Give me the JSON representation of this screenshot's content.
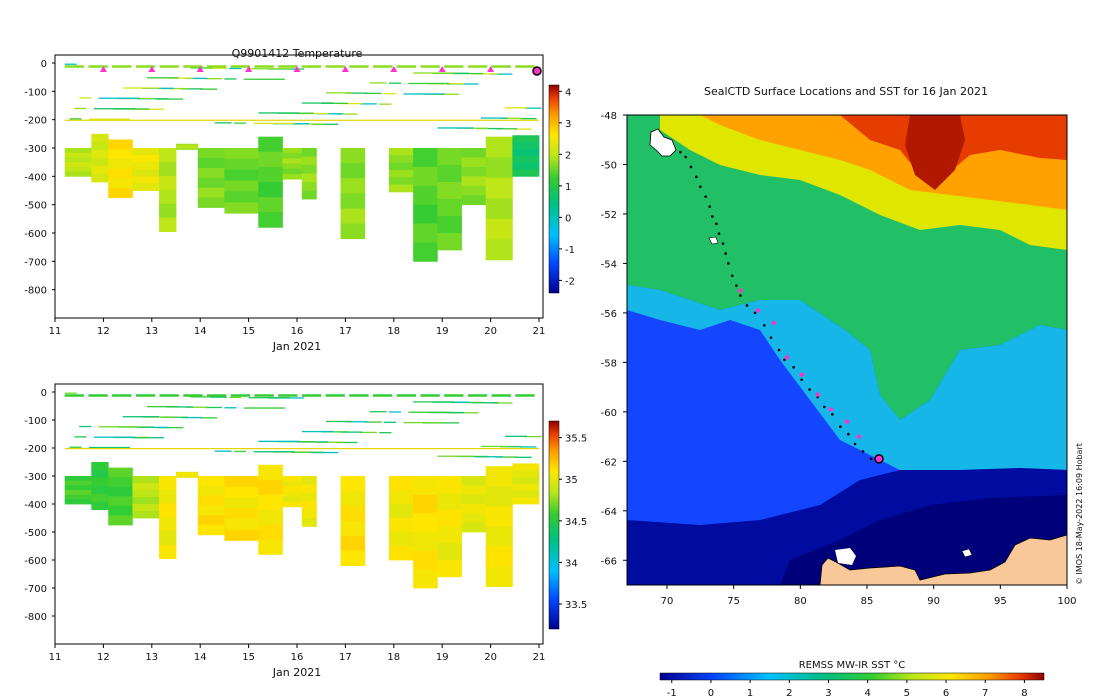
{
  "chart_data": [
    {
      "id": "temperature-profile",
      "type": "heatmap",
      "title": "Q9901412  Temperature",
      "xlabel": "Jan 2021",
      "ylabel": "",
      "xlim": [
        11,
        21
      ],
      "ylim": [
        -900,
        0
      ],
      "xticks": [
        "11",
        "12",
        "13",
        "14",
        "15",
        "16",
        "17",
        "18",
        "19",
        "20",
        "21"
      ],
      "yticks": [
        "0",
        "-100",
        "-200",
        "-300",
        "-400",
        "-500",
        "-600",
        "-700",
        "-800"
      ],
      "colorbar": {
        "min": -2.4,
        "max": 4.2,
        "ticks": [
          "4",
          "3",
          "2",
          "1",
          "0",
          "-1",
          "-2"
        ]
      },
      "profile_markers_x": [
        12,
        13,
        14,
        15,
        16,
        17,
        18,
        19,
        20
      ],
      "latest_marker_x": 21,
      "columns": [
        {
          "x0": 11.2,
          "x1": 11.75,
          "top": -300,
          "bottom": -400,
          "value": 2.0
        },
        {
          "x0": 11.75,
          "x1": 12.1,
          "top": -250,
          "bottom": -420,
          "value": 2.2
        },
        {
          "x0": 12.1,
          "x1": 12.6,
          "top": -270,
          "bottom": -475,
          "value": 2.6
        },
        {
          "x0": 12.6,
          "x1": 13.15,
          "top": -300,
          "bottom": -450,
          "value": 2.4
        },
        {
          "x0": 13.15,
          "x1": 13.5,
          "top": -300,
          "bottom": -595,
          "value": 1.9
        },
        {
          "x0": 13.5,
          "x1": 13.95,
          "top": -285,
          "bottom": -305,
          "value": 1.9
        },
        {
          "x0": 13.95,
          "x1": 14.5,
          "top": -300,
          "bottom": -510,
          "value": 1.6
        },
        {
          "x0": 14.5,
          "x1": 15.2,
          "top": -300,
          "bottom": -530,
          "value": 1.5
        },
        {
          "x0": 15.2,
          "x1": 15.7,
          "top": -260,
          "bottom": -580,
          "value": 1.4
        },
        {
          "x0": 15.7,
          "x1": 16.1,
          "top": -300,
          "bottom": -410,
          "value": 1.7
        },
        {
          "x0": 16.1,
          "x1": 16.4,
          "top": -300,
          "bottom": -480,
          "value": 1.7
        },
        {
          "x0": 16.9,
          "x1": 17.4,
          "top": -300,
          "bottom": -620,
          "value": 1.7
        },
        {
          "x0": 17.9,
          "x1": 18.4,
          "top": -300,
          "bottom": -455,
          "value": 1.7
        },
        {
          "x0": 18.4,
          "x1": 18.9,
          "top": -300,
          "bottom": -700,
          "value": 1.4
        },
        {
          "x0": 18.9,
          "x1": 19.4,
          "top": -300,
          "bottom": -660,
          "value": 1.5
        },
        {
          "x0": 19.4,
          "x1": 19.9,
          "top": -300,
          "bottom": -500,
          "value": 1.7
        },
        {
          "x0": 19.9,
          "x1": 20.45,
          "top": -260,
          "bottom": -695,
          "value": 1.9
        },
        {
          "x0": 20.45,
          "x1": 21.0,
          "top": -255,
          "bottom": -400,
          "value": 0.7
        }
      ]
    },
    {
      "id": "salinity-profile",
      "type": "heatmap",
      "title": "",
      "xlabel": "Jan 2021",
      "ylabel": "",
      "xlim": [
        11,
        21
      ],
      "ylim": [
        -900,
        0
      ],
      "xticks": [
        "11",
        "12",
        "13",
        "14",
        "15",
        "16",
        "17",
        "18",
        "19",
        "20",
        "21"
      ],
      "yticks": [
        "0",
        "-100",
        "-200",
        "-300",
        "-400",
        "-500",
        "-600",
        "-700",
        "-800"
      ],
      "colorbar": {
        "min": 33.2,
        "max": 35.7,
        "ticks": [
          "35.5",
          "35",
          "34.5",
          "34",
          "33.5"
        ]
      },
      "columns": [
        {
          "x0": 11.2,
          "x1": 11.75,
          "top": -300,
          "bottom": -400,
          "value": 34.6
        },
        {
          "x0": 11.75,
          "x1": 12.1,
          "top": -250,
          "bottom": -420,
          "value": 34.55
        },
        {
          "x0": 12.1,
          "x1": 12.6,
          "top": -270,
          "bottom": -475,
          "value": 34.6
        },
        {
          "x0": 12.6,
          "x1": 13.15,
          "top": -300,
          "bottom": -450,
          "value": 34.85
        },
        {
          "x0": 13.15,
          "x1": 13.5,
          "top": -300,
          "bottom": -595,
          "value": 35.05
        },
        {
          "x0": 13.5,
          "x1": 13.95,
          "top": -285,
          "bottom": -305,
          "value": 35.05
        },
        {
          "x0": 13.95,
          "x1": 14.5,
          "top": -300,
          "bottom": -510,
          "value": 35.1
        },
        {
          "x0": 14.5,
          "x1": 15.2,
          "top": -300,
          "bottom": -530,
          "value": 35.1
        },
        {
          "x0": 15.2,
          "x1": 15.7,
          "top": -260,
          "bottom": -580,
          "value": 35.1
        },
        {
          "x0": 15.7,
          "x1": 16.1,
          "top": -300,
          "bottom": -410,
          "value": 35.05
        },
        {
          "x0": 16.1,
          "x1": 16.4,
          "top": -300,
          "bottom": -480,
          "value": 35.05
        },
        {
          "x0": 16.9,
          "x1": 17.4,
          "top": -300,
          "bottom": -620,
          "value": 35.1
        },
        {
          "x0": 17.9,
          "x1": 18.4,
          "top": -300,
          "bottom": -600,
          "value": 35.05
        },
        {
          "x0": 18.4,
          "x1": 18.9,
          "top": -300,
          "bottom": -700,
          "value": 35.1
        },
        {
          "x0": 18.9,
          "x1": 19.4,
          "top": -300,
          "bottom": -660,
          "value": 35.05
        },
        {
          "x0": 19.4,
          "x1": 19.9,
          "top": -300,
          "bottom": -500,
          "value": 35.0
        },
        {
          "x0": 19.9,
          "x1": 20.45,
          "top": -265,
          "bottom": -695,
          "value": 35.05
        },
        {
          "x0": 20.45,
          "x1": 21.0,
          "top": -255,
          "bottom": -400,
          "value": 35.0
        }
      ]
    },
    {
      "id": "sst-map",
      "type": "heatmap",
      "title": "SealCTD Surface Locations and SST for 16 Jan 2021",
      "xlabel": "",
      "ylabel": "",
      "xlim": [
        67,
        100
      ],
      "ylim": [
        -67,
        -48
      ],
      "xticks": [
        "70",
        "75",
        "80",
        "85",
        "90",
        "95",
        "100"
      ],
      "yticks": [
        "-48",
        "-50",
        "-52",
        "-54",
        "-56",
        "-58",
        "-60",
        "-62",
        "-64",
        "-66"
      ],
      "colorbar": {
        "label": "REMSS MW-IR SST °C",
        "min": -1.3,
        "max": 8.5,
        "ticks": [
          "-1",
          "0",
          "1",
          "2",
          "3",
          "4",
          "5",
          "6",
          "7",
          "8"
        ]
      },
      "track": [
        {
          "lon": 71.0,
          "lat": -49.5
        },
        {
          "lon": 71.4,
          "lat": -49.7
        },
        {
          "lon": 71.8,
          "lat": -50.1
        },
        {
          "lon": 72.2,
          "lat": -50.5
        },
        {
          "lon": 72.5,
          "lat": -50.9
        },
        {
          "lon": 72.9,
          "lat": -51.3
        },
        {
          "lon": 73.2,
          "lat": -51.7
        },
        {
          "lon": 73.4,
          "lat": -52.1
        },
        {
          "lon": 73.7,
          "lat": -52.4
        },
        {
          "lon": 73.9,
          "lat": -52.8
        },
        {
          "lon": 74.2,
          "lat": -53.2
        },
        {
          "lon": 74.4,
          "lat": -53.6
        },
        {
          "lon": 74.6,
          "lat": -54.0
        },
        {
          "lon": 74.9,
          "lat": -54.5
        },
        {
          "lon": 75.2,
          "lat": -54.9
        },
        {
          "lon": 75.5,
          "lat": -55.3
        },
        {
          "lon": 76.0,
          "lat": -55.7
        },
        {
          "lon": 76.6,
          "lat": -56.0
        },
        {
          "lon": 77.3,
          "lat": -56.5
        },
        {
          "lon": 77.8,
          "lat": -57.0
        },
        {
          "lon": 78.4,
          "lat": -57.5
        },
        {
          "lon": 78.8,
          "lat": -57.9
        },
        {
          "lon": 79.5,
          "lat": -58.2
        },
        {
          "lon": 80.1,
          "lat": -58.7
        },
        {
          "lon": 80.7,
          "lat": -59.1
        },
        {
          "lon": 81.3,
          "lat": -59.4
        },
        {
          "lon": 81.8,
          "lat": -59.8
        },
        {
          "lon": 82.4,
          "lat": -60.1
        },
        {
          "lon": 83.0,
          "lat": -60.6
        },
        {
          "lon": 83.6,
          "lat": -60.9
        },
        {
          "lon": 84.1,
          "lat": -61.3
        },
        {
          "lon": 84.7,
          "lat": -61.6
        },
        {
          "lon": 85.3,
          "lat": -61.9
        }
      ],
      "profile_positions": [
        {
          "lon": 75.5,
          "lat": -55.1
        },
        {
          "lon": 76.8,
          "lat": -55.9
        },
        {
          "lon": 78.0,
          "lat": -56.4
        },
        {
          "lon": 79.0,
          "lat": -57.8
        },
        {
          "lon": 80.1,
          "lat": -58.5
        },
        {
          "lon": 81.3,
          "lat": -59.3
        },
        {
          "lon": 82.3,
          "lat": -59.9
        },
        {
          "lon": 83.5,
          "lat": -60.4
        },
        {
          "lon": 84.4,
          "lat": -61.0
        }
      ],
      "latest_position": {
        "lon": 85.9,
        "lat": -61.9
      }
    }
  ],
  "credit": "© IMOS 18-May-2022 16:09 Hobart"
}
